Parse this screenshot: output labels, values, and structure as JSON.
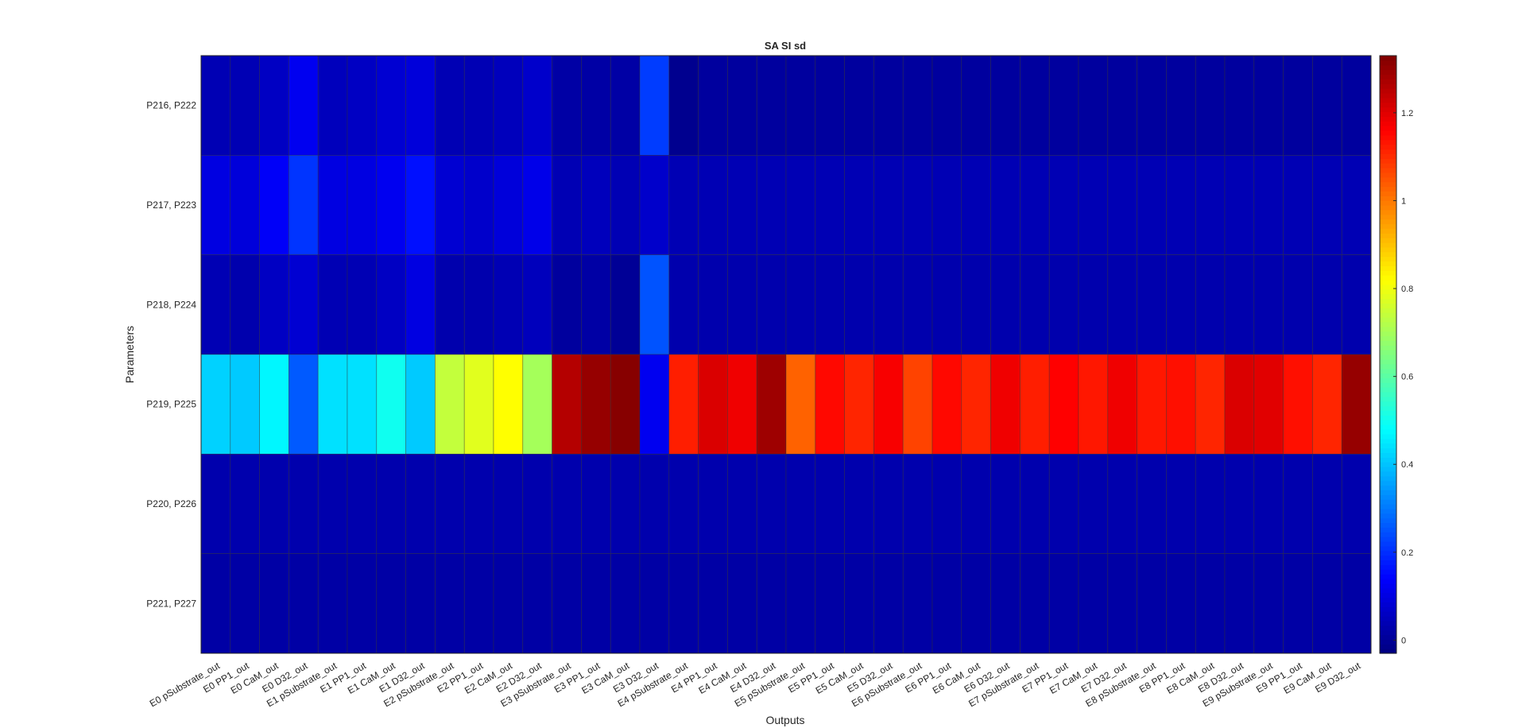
{
  "chart_data": {
    "type": "heatmap",
    "title": "SA SI sd",
    "xlabel": "Outputs",
    "ylabel": "Parameters",
    "colormap": "jet",
    "clim": [
      -0.03,
      1.33
    ],
    "colorbar_ticks": [
      0,
      0.2,
      0.4,
      0.6,
      0.8,
      1,
      1.2
    ],
    "colorbar_tick_labels": [
      "0",
      "0.2",
      "0.4",
      "0.6",
      "0.8",
      "1",
      "1.2"
    ],
    "colorbar_position": "right",
    "rows": [
      "P216, P222",
      "P217, P223",
      "P218, P224",
      "P219, P225",
      "P220, P226",
      "P221, P227"
    ],
    "columns": [
      "E0 pSubstrate_out",
      "E0 PP1_out",
      "E0 CaM_out",
      "E0 D32_out",
      "E1 pSubstrate_out",
      "E1 PP1_out",
      "E1 CaM_out",
      "E1 D32_out",
      "E2 pSubstrate_out",
      "E2 PP1_out",
      "E2 CaM_out",
      "E2 D32_out",
      "E3 pSubstrate_out",
      "E3 PP1_out",
      "E3 CaM_out",
      "E3 D32_out",
      "E4 pSubstrate_out",
      "E4 PP1_out",
      "E4 CaM_out",
      "E4 D32_out",
      "E5 pSubstrate_out",
      "E5 PP1_out",
      "E5 CaM_out",
      "E5 D32_out",
      "E6 pSubstrate_out",
      "E6 PP1_out",
      "E6 CaM_out",
      "E6 D32_out",
      "E7 pSubstrate_out",
      "E7 PP1_out",
      "E7 CaM_out",
      "E7 D32_out",
      "E8 pSubstrate_out",
      "E8 PP1_out",
      "E8 CaM_out",
      "E8 D32_out",
      "E9 pSubstrate_out",
      "E9 PP1_out",
      "E9 CaM_out",
      "E9 D32_out"
    ],
    "values": [
      [
        0.04,
        0.04,
        0.06,
        0.12,
        0.05,
        0.06,
        0.08,
        0.09,
        0.04,
        0.04,
        0.05,
        0.07,
        0.02,
        0.02,
        0.02,
        0.22,
        -0.01,
        0.01,
        0.01,
        0.01,
        0.01,
        0.01,
        0.01,
        0.01,
        0.01,
        0.01,
        0.01,
        0.01,
        0.01,
        0.01,
        0.01,
        0.01,
        0.01,
        0.01,
        0.01,
        0.01,
        0.01,
        0.01,
        0.01,
        0.01
      ],
      [
        0.1,
        0.09,
        0.13,
        0.21,
        0.1,
        0.1,
        0.12,
        0.16,
        0.08,
        0.07,
        0.09,
        0.11,
        0.04,
        0.05,
        0.04,
        0.07,
        0.04,
        0.04,
        0.04,
        0.04,
        0.04,
        0.04,
        0.04,
        0.04,
        0.04,
        0.04,
        0.04,
        0.04,
        0.04,
        0.04,
        0.04,
        0.04,
        0.04,
        0.04,
        0.04,
        0.04,
        0.04,
        0.04,
        0.04,
        0.04
      ],
      [
        0.04,
        0.03,
        0.06,
        0.08,
        0.04,
        0.04,
        0.06,
        0.1,
        0.03,
        0.03,
        0.04,
        0.05,
        0.01,
        0.02,
        0.0,
        0.25,
        0.03,
        0.03,
        0.03,
        0.03,
        0.03,
        0.03,
        0.03,
        0.03,
        0.03,
        0.03,
        0.03,
        0.03,
        0.03,
        0.03,
        0.03,
        0.03,
        0.03,
        0.03,
        0.03,
        0.03,
        0.03,
        0.03,
        0.03,
        0.03
      ],
      [
        0.42,
        0.41,
        0.47,
        0.26,
        0.44,
        0.44,
        0.5,
        0.41,
        0.74,
        0.78,
        0.82,
        0.7,
        1.26,
        1.3,
        1.32,
        0.12,
        1.12,
        1.21,
        1.18,
        1.29,
        1.03,
        1.15,
        1.11,
        1.17,
        1.07,
        1.15,
        1.11,
        1.18,
        1.12,
        1.16,
        1.13,
        1.18,
        1.13,
        1.14,
        1.11,
        1.21,
        1.2,
        1.14,
        1.11,
        1.3
      ],
      [
        0.03,
        0.03,
        0.03,
        0.03,
        0.03,
        0.03,
        0.03,
        0.03,
        0.03,
        0.03,
        0.03,
        0.03,
        0.03,
        0.03,
        0.03,
        0.03,
        0.03,
        0.03,
        0.03,
        0.03,
        0.03,
        0.03,
        0.03,
        0.03,
        0.03,
        0.03,
        0.03,
        0.03,
        0.03,
        0.03,
        0.03,
        0.03,
        0.03,
        0.03,
        0.03,
        0.03,
        0.03,
        0.03,
        0.03,
        0.03
      ],
      [
        0.02,
        0.02,
        0.02,
        0.02,
        0.02,
        0.02,
        0.02,
        0.02,
        0.02,
        0.02,
        0.02,
        0.02,
        0.02,
        0.02,
        0.02,
        0.02,
        0.02,
        0.02,
        0.02,
        0.02,
        0.02,
        0.02,
        0.02,
        0.02,
        0.02,
        0.02,
        0.02,
        0.02,
        0.02,
        0.02,
        0.02,
        0.02,
        0.02,
        0.02,
        0.02,
        0.02,
        0.02,
        0.02,
        0.02,
        0.02
      ]
    ]
  }
}
